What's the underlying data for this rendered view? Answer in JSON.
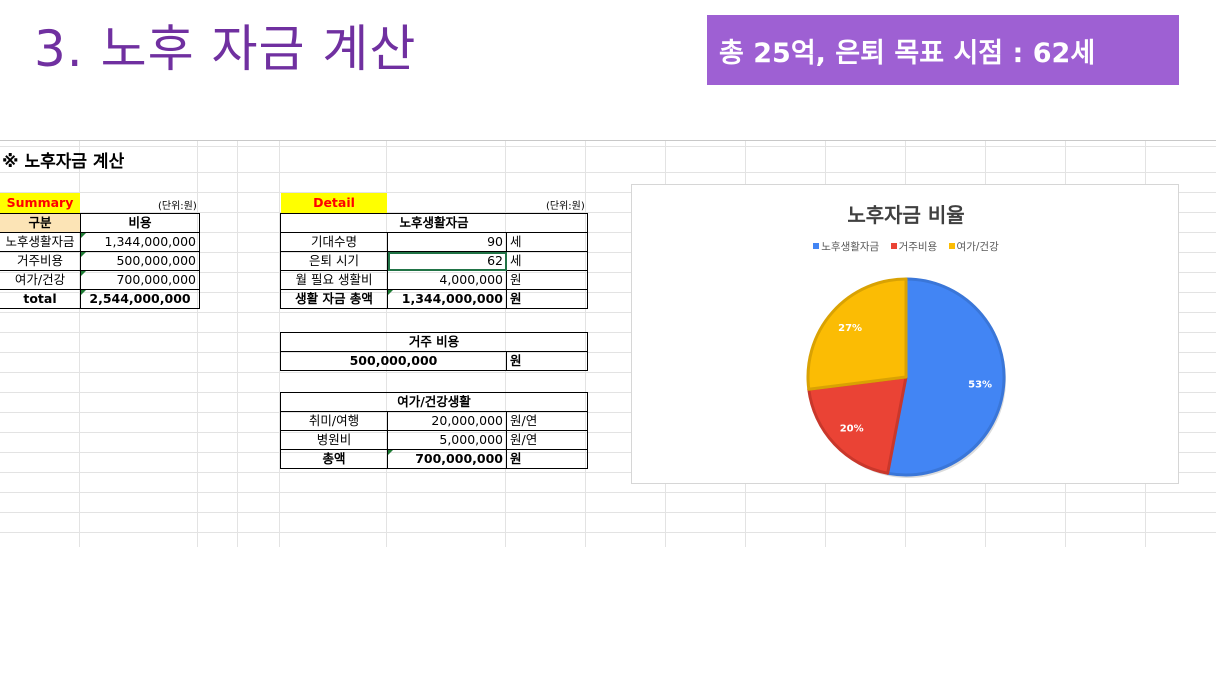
{
  "slide": {
    "title": "3. 노후 자금 계산",
    "banner": "총 25억, 은퇴 목표 시점 : 62세"
  },
  "sheet": {
    "title": "※ 노후자금 계산",
    "summary": {
      "tag": "Summary",
      "unit": "(단위:원)",
      "headers": [
        "구분",
        "비용"
      ],
      "rows": [
        {
          "label": "노후생활자금",
          "value": "1,344,000,000"
        },
        {
          "label": "거주비용",
          "value": "500,000,000"
        },
        {
          "label": "여가/건강",
          "value": "700,000,000"
        }
      ],
      "total": {
        "label": "total",
        "value": "2,544,000,000"
      }
    },
    "detail": {
      "tag": "Detail",
      "unit": "(단위:원)",
      "living": {
        "header": "노후생활자금",
        "rows": [
          {
            "label": "기대수명",
            "value": "90",
            "unit": "세"
          },
          {
            "label": "은퇴 시기",
            "value": "62",
            "unit": "세"
          },
          {
            "label": "월 필요 생활비",
            "value": "4,000,000",
            "unit": "원"
          },
          {
            "label": "생활 자금 총액",
            "value": "1,344,000,000",
            "unit": "원"
          }
        ]
      },
      "housing": {
        "header": "거주 비용",
        "value": "500,000,000",
        "unit": "원"
      },
      "leisure": {
        "header": "여가/건강생활",
        "rows": [
          {
            "label": "취미/여행",
            "value": "20,000,000",
            "unit": "원/연"
          },
          {
            "label": "병원비",
            "value": "5,000,000",
            "unit": "원/연"
          },
          {
            "label": "총액",
            "value": "700,000,000",
            "unit": "원"
          }
        ]
      }
    }
  },
  "chart_data": {
    "type": "pie",
    "title": "노후자금 비율",
    "legend_position": "top",
    "categories": [
      "노후생활자금",
      "거주비용",
      "여가/건강"
    ],
    "values": [
      53,
      20,
      27
    ],
    "labels": [
      "53%",
      "20%",
      "27%"
    ],
    "colors": [
      "#4285f4",
      "#ea4335",
      "#fbbc04"
    ]
  }
}
